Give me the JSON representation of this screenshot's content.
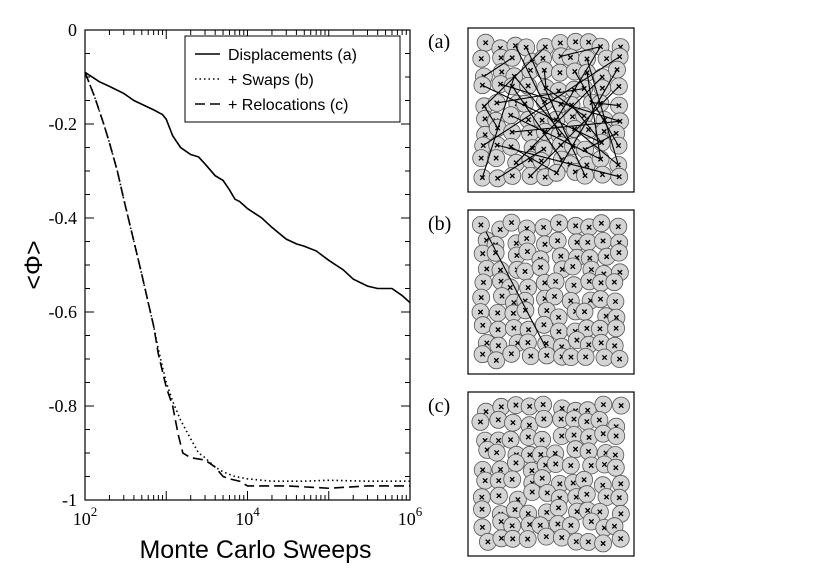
{
  "chart_data": [
    {
      "type": "line",
      "title": "",
      "xlabel": "Monte Carlo Sweeps",
      "ylabel": "<Φ>",
      "xscale": "log",
      "xlim": [
        100,
        1000000
      ],
      "ylim": [
        -1,
        0
      ],
      "xticks": [
        {
          "value": 100,
          "base": "10",
          "exp": "2"
        },
        {
          "value": 10000,
          "base": "10",
          "exp": "4"
        },
        {
          "value": 1000000,
          "base": "10",
          "exp": "6"
        }
      ],
      "yticks": [
        {
          "value": 0,
          "label": "0"
        },
        {
          "value": -0.2,
          "label": "-0.2"
        },
        {
          "value": -0.4,
          "label": "-0.4"
        },
        {
          "value": -0.6,
          "label": "-0.6"
        },
        {
          "value": -0.8,
          "label": "-0.8"
        },
        {
          "value": -1,
          "label": "-1"
        }
      ],
      "legend_position": "top-right",
      "series": [
        {
          "name": "Displacements (a)",
          "style": "solid",
          "points": [
            [
              100,
              -0.09
            ],
            [
              150,
              -0.11
            ],
            [
              200,
              -0.12
            ],
            [
              300,
              -0.135
            ],
            [
              400,
              -0.15
            ],
            [
              500,
              -0.158
            ],
            [
              700,
              -0.17
            ],
            [
              900,
              -0.18
            ],
            [
              1000,
              -0.19
            ],
            [
              1200,
              -0.225
            ],
            [
              1500,
              -0.25
            ],
            [
              2000,
              -0.265
            ],
            [
              2500,
              -0.27
            ],
            [
              3000,
              -0.285
            ],
            [
              4000,
              -0.31
            ],
            [
              5000,
              -0.32
            ],
            [
              6000,
              -0.34
            ],
            [
              7000,
              -0.36
            ],
            [
              8000,
              -0.365
            ],
            [
              10000,
              -0.38
            ],
            [
              15000,
              -0.4
            ],
            [
              20000,
              -0.42
            ],
            [
              30000,
              -0.445
            ],
            [
              40000,
              -0.455
            ],
            [
              50000,
              -0.46
            ],
            [
              70000,
              -0.47
            ],
            [
              100000,
              -0.49
            ],
            [
              150000,
              -0.51
            ],
            [
              200000,
              -0.53
            ],
            [
              300000,
              -0.545
            ],
            [
              400000,
              -0.55
            ],
            [
              600000,
              -0.55
            ],
            [
              800000,
              -0.565
            ],
            [
              1000000,
              -0.58
            ]
          ]
        },
        {
          "name": "+ Swaps (b)",
          "style": "dotted",
          "points": [
            [
              100,
              -0.09
            ],
            [
              130,
              -0.14
            ],
            [
              170,
              -0.2
            ],
            [
              200,
              -0.24
            ],
            [
              250,
              -0.3
            ],
            [
              300,
              -0.36
            ],
            [
              400,
              -0.45
            ],
            [
              500,
              -0.52
            ],
            [
              600,
              -0.58
            ],
            [
              700,
              -0.63
            ],
            [
              800,
              -0.68
            ],
            [
              1000,
              -0.75
            ],
            [
              1200,
              -0.79
            ],
            [
              1500,
              -0.83
            ],
            [
              2000,
              -0.87
            ],
            [
              2500,
              -0.9
            ],
            [
              3000,
              -0.91
            ],
            [
              4000,
              -0.93
            ],
            [
              5000,
              -0.94
            ],
            [
              7000,
              -0.95
            ],
            [
              10000,
              -0.955
            ],
            [
              20000,
              -0.96
            ],
            [
              50000,
              -0.96
            ],
            [
              100000,
              -0.958
            ],
            [
              300000,
              -0.96
            ],
            [
              1000000,
              -0.96
            ]
          ]
        },
        {
          "name": "+ Relocations (c)",
          "style": "dashed",
          "points": [
            [
              100,
              -0.09
            ],
            [
              130,
              -0.14
            ],
            [
              170,
              -0.2
            ],
            [
              200,
              -0.24
            ],
            [
              250,
              -0.3
            ],
            [
              300,
              -0.36
            ],
            [
              400,
              -0.45
            ],
            [
              500,
              -0.52
            ],
            [
              600,
              -0.58
            ],
            [
              700,
              -0.63
            ],
            [
              800,
              -0.69
            ],
            [
              1000,
              -0.76
            ],
            [
              1200,
              -0.8
            ],
            [
              1400,
              -0.86
            ],
            [
              1600,
              -0.9
            ],
            [
              2000,
              -0.91
            ],
            [
              3000,
              -0.915
            ],
            [
              4000,
              -0.93
            ],
            [
              5000,
              -0.95
            ],
            [
              6000,
              -0.955
            ],
            [
              8000,
              -0.96
            ],
            [
              10000,
              -0.97
            ],
            [
              30000,
              -0.97
            ],
            [
              100000,
              -0.975
            ],
            [
              300000,
              -0.97
            ],
            [
              1000000,
              -0.97
            ]
          ]
        }
      ]
    },
    {
      "type": "scatter",
      "panels": [
        {
          "label": "(a)"
        },
        {
          "label": "(b)"
        },
        {
          "label": "(c)"
        }
      ]
    }
  ]
}
